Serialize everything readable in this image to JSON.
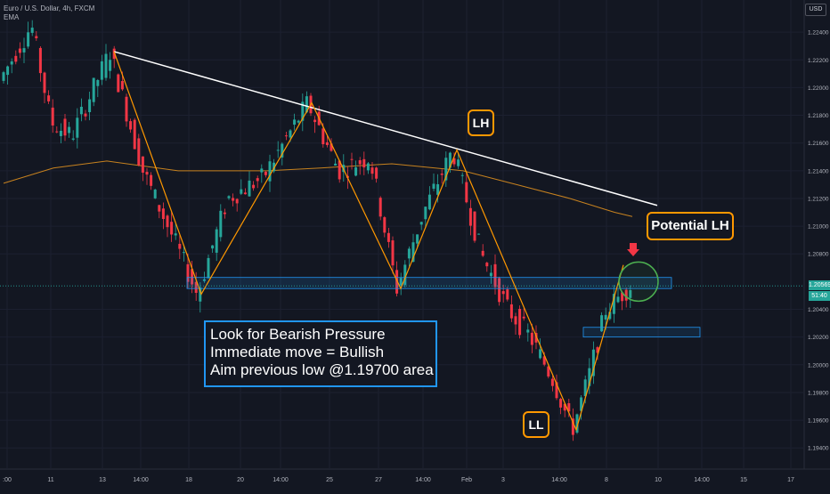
{
  "header": {
    "title": "Euro / U.S. Dollar, 4h, FXCM",
    "indicator": "EMA",
    "currency_button": "USD"
  },
  "annotations": {
    "lh": "LH",
    "potential_lh": "Potential LH",
    "ll": "LL",
    "note_lines": [
      "Look for Bearish Pressure",
      "Immediate move = Bullish",
      "Aim previous low @1.19700 area"
    ]
  },
  "price_tags": {
    "current": "1.20569",
    "countdown": "51:40"
  },
  "colors": {
    "background": "#131722",
    "bull": "#26a69a",
    "bear": "#f23645",
    "zigzag": "#ff9800",
    "trendline": "#ffffff",
    "ema": "#c7821f",
    "zone_border": "#2196f3",
    "circle": "#4caf50",
    "arrow": "#f23645"
  },
  "chart_data": {
    "type": "candlestick",
    "symbol": "Euro / U.S. Dollar, 4h, FXCM",
    "ylim": [
      1.1935,
      1.226
    ],
    "y_ticks": [
      1.194,
      1.196,
      1.198,
      1.2,
      1.202,
      1.204,
      1.208,
      1.21,
      1.212,
      1.214,
      1.216,
      1.218,
      1.22,
      1.222,
      1.224
    ],
    "y_tick_labels": [
      "1.19400",
      "1.19600",
      "1.19800",
      "1.20000",
      "1.20200",
      "1.20400",
      "1.20800",
      "1.21000",
      "1.21200",
      "1.21400",
      "1.21600",
      "1.21800",
      "1.22000",
      "1.22200",
      "1.22400"
    ],
    "x_tick_labels": [
      ":00",
      "11",
      "13",
      "14:00",
      "18",
      "20",
      "14:00",
      "25",
      "27",
      "14:00",
      "Feb",
      "3",
      "14:00",
      "8",
      "10",
      "14:00",
      "15",
      "17"
    ],
    "current_price": 1.20569,
    "pivots": [
      {
        "label": "",
        "price": 1.2226
      },
      {
        "label": "",
        "price": 1.2051
      },
      {
        "label": "",
        "price": 1.2189
      },
      {
        "label": "",
        "price": 1.2055
      },
      {
        "label": "LH",
        "price": 1.2155
      },
      {
        "label": "LL",
        "price": 1.1953
      },
      {
        "label": "Potential LH",
        "price": 1.2072
      }
    ],
    "zones": [
      {
        "from": 1.2055,
        "to": 1.2063
      },
      {
        "from": 1.202,
        "to": 1.2027
      }
    ],
    "trendline": {
      "from": 1.2226,
      "to": 1.2115
    },
    "ema_start": 1.2142,
    "ema_end": 1.211
  }
}
